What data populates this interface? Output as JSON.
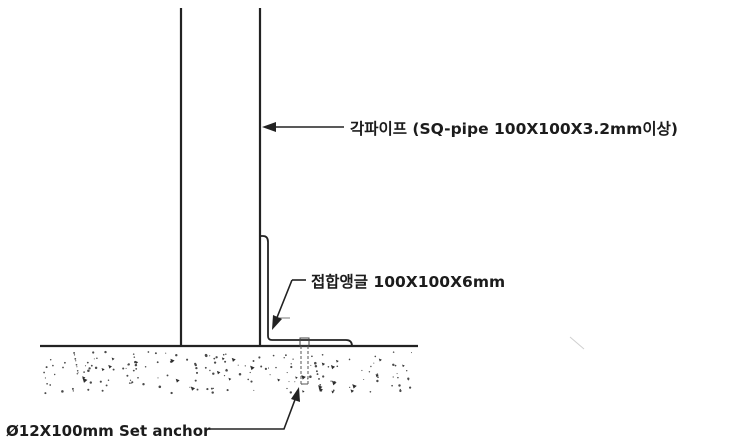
{
  "labels": {
    "pipe": "각파이프 (SQ-pipe 100X100X3.2mm이상)",
    "angle": "접합앵글 100X100X6mm",
    "anchor": "Ø12X100mm Set anchor"
  }
}
